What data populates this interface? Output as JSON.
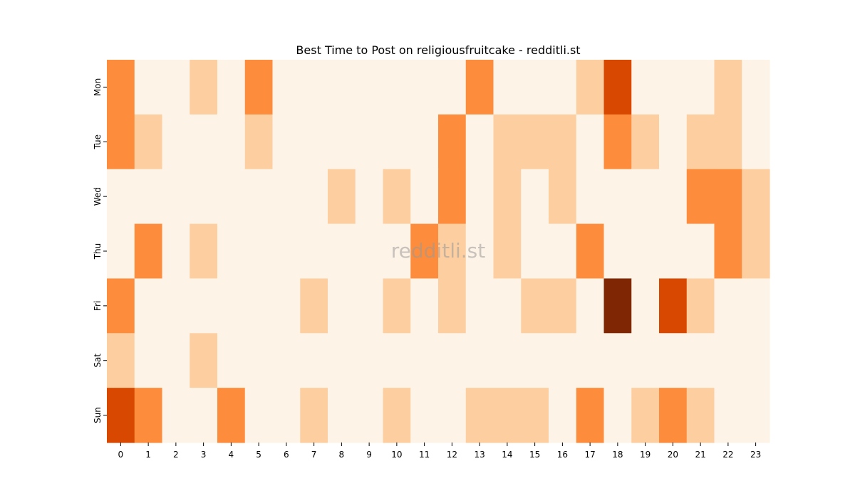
{
  "chart_data": {
    "type": "heatmap",
    "title": "Best Time to Post on religiousfruitcake - redditli.st",
    "watermark": "redditli.st",
    "xlabel": "",
    "ylabel": "",
    "x": [
      "0",
      "1",
      "2",
      "3",
      "4",
      "5",
      "6",
      "7",
      "8",
      "9",
      "10",
      "11",
      "12",
      "13",
      "14",
      "15",
      "16",
      "17",
      "18",
      "19",
      "20",
      "21",
      "22",
      "23"
    ],
    "y": [
      "Mon",
      "Tue",
      "Wed",
      "Thu",
      "Fri",
      "Sat",
      "Sun"
    ],
    "values": [
      [
        2,
        0,
        0,
        1,
        0,
        2,
        0,
        0,
        0,
        0,
        0,
        0,
        0,
        2,
        0,
        0,
        0,
        1,
        3,
        0,
        0,
        0,
        1,
        0
      ],
      [
        2,
        1,
        0,
        0,
        0,
        1,
        0,
        0,
        0,
        0,
        0,
        0,
        2,
        0,
        1,
        1,
        1,
        0,
        2,
        1,
        0,
        1,
        1,
        0
      ],
      [
        0,
        0,
        0,
        0,
        0,
        0,
        0,
        0,
        1,
        0,
        1,
        0,
        2,
        0,
        1,
        0,
        1,
        0,
        0,
        0,
        0,
        2,
        2,
        1
      ],
      [
        0,
        2,
        0,
        1,
        0,
        0,
        0,
        0,
        0,
        0,
        0,
        2,
        1,
        0,
        1,
        0,
        0,
        2,
        0,
        0,
        0,
        0,
        2,
        1
      ],
      [
        2,
        0,
        0,
        0,
        0,
        0,
        0,
        1,
        0,
        0,
        1,
        0,
        1,
        0,
        0,
        1,
        1,
        0,
        4,
        0,
        3,
        1,
        0,
        0
      ],
      [
        1,
        0,
        0,
        1,
        0,
        0,
        0,
        0,
        0,
        0,
        0,
        0,
        0,
        0,
        0,
        0,
        0,
        0,
        0,
        0,
        0,
        0,
        0,
        0
      ],
      [
        3,
        2,
        0,
        0,
        2,
        0,
        0,
        1,
        0,
        0,
        1,
        0,
        0,
        1,
        1,
        1,
        0,
        2,
        0,
        1,
        2,
        1,
        0,
        0
      ]
    ],
    "color_scale": [
      "#fef3e7",
      "#fdcfa0",
      "#fd8d3c",
      "#d94801",
      "#7f2704"
    ],
    "colorbar": false,
    "grid": false
  }
}
